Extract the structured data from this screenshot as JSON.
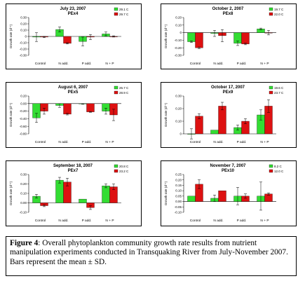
{
  "caption": {
    "label": "Figure 4",
    "text": ": Overall phytoplankton community growth rate results from nutrient manipulation experiments conducted in Transquaking River from July-November 2007. Bars represent the mean ± SD."
  },
  "colors": {
    "green": "#33dd33",
    "red": "#dd1111"
  },
  "chart_data": [
    {
      "type": "bar",
      "title": "July 23, 2007",
      "subtitle": "PEx4",
      "categories": [
        "Control",
        "N add.",
        "P add.",
        "N + P"
      ],
      "ylabel": "Growth rate (d⁻¹)",
      "ylim": [
        -0.3,
        0.3
      ],
      "yticks": [
        -0.3,
        -0.2,
        -0.1,
        0,
        0.1,
        0.2,
        0.3
      ],
      "ytick_labels": [
        "-0.30",
        "-0.20",
        "-0.10",
        "0",
        "0.10",
        "0.20",
        "0.30"
      ],
      "series": [
        {
          "name": "29.1 C",
          "values": [
            -0.01,
            0.11,
            -0.08,
            0.04
          ],
          "errors": [
            0.07,
            0.04,
            0.07,
            0.03
          ]
        },
        {
          "name": "29.7 C",
          "values": [
            -0.01,
            -0.11,
            -0.01,
            0
          ],
          "errors": [
            0.01,
            0.01,
            0.04,
            0.01
          ]
        }
      ]
    },
    {
      "type": "bar",
      "title": "October 2, 2007",
      "subtitle": "PEx8",
      "categories": [
        "Control",
        "N add.",
        "P add.",
        "N + P"
      ],
      "ylabel": "Growth rate (d⁻¹)",
      "ylim": [
        -0.3,
        0.2
      ],
      "yticks": [
        -0.3,
        -0.2,
        -0.1,
        0,
        0.1,
        0.2
      ],
      "ytick_labels": [
        "-0.30",
        "-0.20",
        "-0.10",
        "0",
        "0.10",
        "0.20"
      ],
      "series": [
        {
          "name": "19.7 C",
          "values": [
            -0.12,
            -0.01,
            -0.14,
            0.05
          ],
          "errors": [
            0.01,
            0.04,
            0.03,
            0.01
          ]
        },
        {
          "name": "22.0 C",
          "values": [
            -0.2,
            -0.04,
            -0.15,
            0.0
          ],
          "errors": [
            0.01,
            0.08,
            0.01,
            0.03
          ]
        }
      ]
    },
    {
      "type": "bar",
      "title": "August 6, 2007",
      "subtitle": "PEx5",
      "categories": [
        "Control",
        "N add.",
        "P add.",
        "N + P"
      ],
      "ylabel": "Growth rate (d⁻¹)",
      "ylim": [
        -0.8,
        0.2
      ],
      "yticks": [
        -0.8,
        -0.6,
        -0.4,
        -0.2,
        0,
        0.2
      ],
      "ytick_labels": [
        "-0.80",
        "-0.60",
        "-0.40",
        "-0.20",
        "0.00",
        "0.20"
      ],
      "series": [
        {
          "name": "26.7 C",
          "values": [
            -0.38,
            -0.05,
            -0.01,
            -0.2
          ],
          "errors": [
            0.12,
            0.05,
            0.01,
            0.08
          ]
        },
        {
          "name": "28.9 C",
          "values": [
            -0.2,
            -0.28,
            -0.22,
            -0.3
          ],
          "errors": [
            0.08,
            0.02,
            0.01,
            0.15
          ]
        }
      ]
    },
    {
      "type": "bar",
      "title": "October 17, 2007",
      "subtitle": "PEx9",
      "categories": [
        "Control",
        "N add.",
        "P add.",
        "N + P"
      ],
      "ylabel": "Growth rate (d⁻¹)",
      "ylim": [
        0,
        0.3
      ],
      "yticks": [
        0,
        0.1,
        0.2,
        0.3
      ],
      "ytick_labels": [
        "0",
        "0.10",
        "0.20",
        "0.30"
      ],
      "series": [
        {
          "name": "19.6 C",
          "values": [
            0.0,
            0.03,
            0.05,
            0.15
          ],
          "errors": [
            0.04,
            0.0,
            0.02,
            0.04
          ]
        },
        {
          "name": "23.7 C",
          "values": [
            0.14,
            0.22,
            0.1,
            0.22
          ],
          "errors": [
            0.02,
            0.03,
            0.02,
            0.05
          ]
        }
      ]
    },
    {
      "type": "bar",
      "title": "September 18, 2007",
      "subtitle": "PEx7",
      "categories": [
        "Control",
        "N add.",
        "P add.",
        "N + P"
      ],
      "ylabel": "Growth rate (d⁻¹)",
      "ylim": [
        -0.1,
        0.3
      ],
      "yticks": [
        -0.1,
        0,
        0.1,
        0.2,
        0.3
      ],
      "ytick_labels": [
        "-0.10",
        "0.00",
        "0.10",
        "0.20",
        "0.30"
      ],
      "series": [
        {
          "name": "20.8 C",
          "values": [
            0.07,
            0.24,
            0.04,
            0.18
          ],
          "errors": [
            0.02,
            0.03,
            0.0,
            0.02
          ]
        },
        {
          "name": "23.2 C",
          "values": [
            -0.03,
            0.22,
            -0.05,
            0.17
          ],
          "errors": [
            0.01,
            0.04,
            0.02,
            0.03
          ]
        }
      ]
    },
    {
      "type": "bar",
      "title": "November 7, 2007",
      "subtitle": "PEx10",
      "categories": [
        "Control",
        "N add.",
        "P add.",
        "N + P"
      ],
      "ylabel": "Growth rate (d⁻¹)",
      "ylim": [
        -0.1,
        0.25
      ],
      "yticks": [
        -0.1,
        -0.05,
        0,
        0.05,
        0.1,
        0.15,
        0.2,
        0.25
      ],
      "ytick_labels": [
        "-0.10",
        "-0.05",
        "0.00",
        "0.05",
        "0.10",
        "0.15",
        "0.20",
        "0.25"
      ],
      "series": [
        {
          "name": "8.2 C",
          "values": [
            0.05,
            0.03,
            0.05,
            0.05
          ],
          "errors": [
            0.0,
            0.03,
            0.08,
            0.13
          ]
        },
        {
          "name": "12.0 C",
          "values": [
            0.16,
            0.1,
            0.05,
            0.07
          ],
          "errors": [
            0.04,
            0.0,
            0.02,
            0.01
          ]
        }
      ]
    }
  ]
}
